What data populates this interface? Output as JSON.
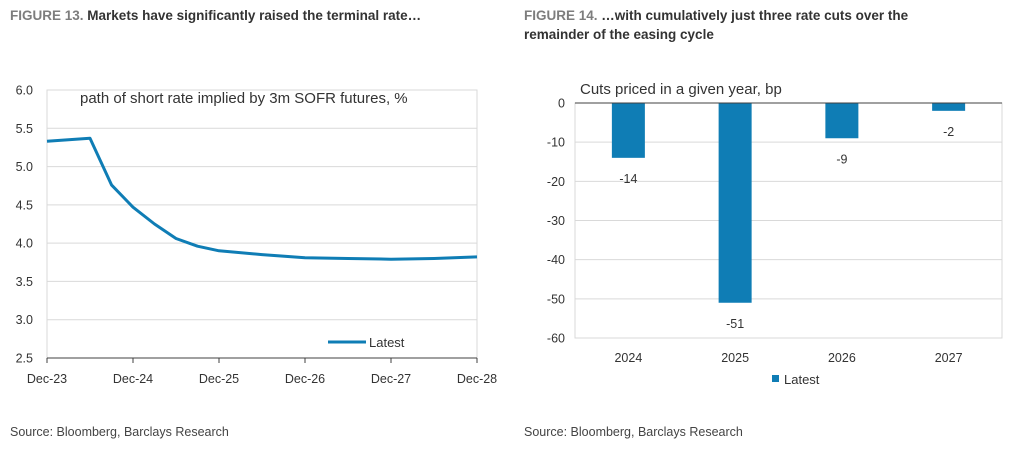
{
  "figures": [
    {
      "number": "FIGURE 13.",
      "title": "Markets have significantly raised the terminal rate…",
      "source": "Source: Bloomberg, Barclays Research",
      "line_color": "#0f7db5",
      "chart_data": {
        "type": "line",
        "title": "path of short rate implied by 3m SOFR futures, %",
        "x_ticks": [
          "Dec-23",
          "Dec-24",
          "Dec-25",
          "Dec-26",
          "Dec-27",
          "Dec-28"
        ],
        "y_ticks": [
          "6.0",
          "5.5",
          "5.0",
          "4.5",
          "4.0",
          "3.5",
          "3.0",
          "2.5"
        ],
        "ylim": [
          2.5,
          6.0
        ],
        "xlim_months_from_first_tick": [
          0,
          60
        ],
        "grid": "horizontal",
        "legend": "bottom-right",
        "series": [
          {
            "name": "Latest",
            "x": [
              "Dec-23",
              "Mar-24",
              "Jun-24",
              "Sep-24",
              "Dec-24",
              "Mar-25",
              "Jun-25",
              "Sep-25",
              "Dec-25",
              "Jun-26",
              "Dec-26",
              "Jun-27",
              "Dec-27",
              "Jun-28",
              "Dec-28"
            ],
            "x_months": [
              0,
              3,
              6,
              9,
              12,
              15,
              18,
              21,
              24,
              30,
              36,
              42,
              48,
              54,
              60
            ],
            "values": [
              5.33,
              5.35,
              5.37,
              4.76,
              4.47,
              4.25,
              4.06,
              3.96,
              3.9,
              3.85,
              3.81,
              3.8,
              3.79,
              3.8,
              3.82
            ]
          }
        ]
      }
    },
    {
      "number": "FIGURE 14.",
      "title_lines": [
        "…with cumulatively just three rate cuts over the",
        "remainder of the easing cycle"
      ],
      "source": "Source: Bloomberg, Barclays Research",
      "bar_color": "#0f7db5",
      "chart_data": {
        "type": "bar",
        "title": "Cuts priced in a given year, bp",
        "categories": [
          "2024",
          "2025",
          "2026",
          "2027"
        ],
        "y_ticks": [
          "0",
          "-10",
          "-20",
          "-30",
          "-40",
          "-50",
          "-60"
        ],
        "ylim": [
          -60,
          0
        ],
        "grid": "horizontal",
        "legend": "bottom-center",
        "series": [
          {
            "name": "Latest",
            "values": [
              -14,
              -51,
              -9,
              -2
            ],
            "labels": [
              "-14",
              "-51",
              "-9",
              "-2"
            ]
          }
        ]
      }
    }
  ]
}
